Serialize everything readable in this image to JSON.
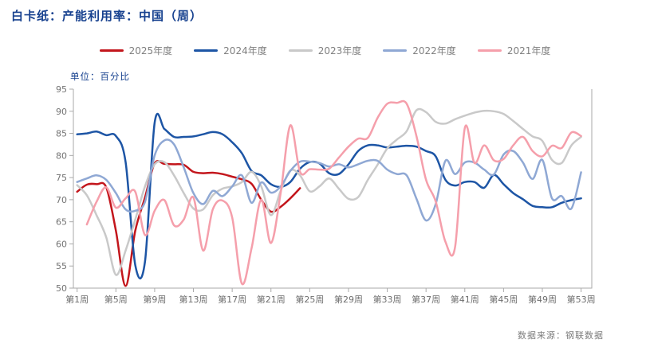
{
  "chart_data": {
    "type": "line",
    "title": "白卡纸：产能利用率：中国（周）",
    "unit_label": "单位：百分比",
    "source_label": "数据来源：钢联数据",
    "ylim": [
      50,
      95
    ],
    "ytick_step": 5,
    "x_weeks": 53,
    "xtick_weeks": [
      1,
      5,
      9,
      13,
      17,
      21,
      25,
      29,
      33,
      37,
      41,
      45,
      49,
      53
    ],
    "xtick_labels": [
      "第1周",
      "第5周",
      "第9周",
      "第13周",
      "第17周",
      "第21周",
      "第25周",
      "第29周",
      "第33周",
      "第37周",
      "第41周",
      "第45周",
      "第49周",
      "第53周"
    ],
    "grid": false,
    "legend_position": "top",
    "colors": {
      "title_text": "#17418f",
      "unit_text": "#17418f",
      "axis_line": "#aaaaaa",
      "tick_text": "#737373",
      "legend_text": "#7f7f7f",
      "source_text": "#7c7c7c"
    },
    "series": [
      {
        "name": "2025年度",
        "color": "#c3161c",
        "start_week": 1,
        "values": [
          71.8,
          73.4,
          73.5,
          72.8,
          63.0,
          50.5,
          63.0,
          70.5,
          78.2,
          78.1,
          78.0,
          77.9,
          76.3,
          76.0,
          76.1,
          75.8,
          75.2,
          74.6,
          73.6,
          70.0,
          67.3,
          68.4,
          70.3,
          72.6
        ]
      },
      {
        "name": "2024年度",
        "color": "#1d55a5",
        "start_week": 1,
        "values": [
          84.8,
          85.0,
          85.4,
          84.6,
          84.4,
          78.5,
          55.2,
          56.0,
          87.4,
          86.0,
          84.2,
          84.2,
          84.3,
          84.8,
          85.3,
          84.8,
          83.0,
          80.5,
          76.5,
          75.5,
          73.5,
          72.9,
          74.0,
          77.0,
          78.5,
          78.2,
          76.0,
          75.8,
          78.0,
          81.0,
          82.3,
          82.3,
          81.8,
          82.0,
          82.2,
          82.0,
          81.0,
          79.8,
          74.5,
          73.2,
          74.0,
          74.0,
          72.7,
          75.6,
          73.5,
          71.5,
          70.1,
          68.6,
          68.3,
          68.3,
          69.3,
          69.9,
          70.3
        ]
      },
      {
        "name": "2023年度",
        "color": "#c9c9c9",
        "start_week": 1,
        "values": [
          73.3,
          71.0,
          66.5,
          61.5,
          53.0,
          58.5,
          65.5,
          73.0,
          78.0,
          78.5,
          75.5,
          71.5,
          68.0,
          67.8,
          71.0,
          72.5,
          73.0,
          74.0,
          76.3,
          73.0,
          66.5,
          72.0,
          76.6,
          75.5,
          71.9,
          73.0,
          74.8,
          72.5,
          70.2,
          70.6,
          74.5,
          77.9,
          81.6,
          83.6,
          85.5,
          90.2,
          89.8,
          87.6,
          87.2,
          88.2,
          89.0,
          89.7,
          90.1,
          90.0,
          89.4,
          87.8,
          86.0,
          84.3,
          83.3,
          79.0,
          78.3,
          82.3,
          84.2
        ]
      },
      {
        "name": "2022年度",
        "color": "#8fa8d4",
        "start_week": 1,
        "values": [
          74.0,
          74.8,
          75.5,
          74.5,
          71.5,
          67.8,
          67.5,
          69.5,
          80.0,
          83.4,
          82.5,
          77.3,
          71.5,
          69.0,
          72.0,
          70.8,
          73.0,
          75.5,
          69.3,
          73.9,
          71.6,
          73.0,
          76.5,
          78.6,
          78.6,
          78.3,
          77.5,
          78.0,
          77.3,
          78.0,
          78.8,
          78.8,
          76.8,
          75.8,
          75.5,
          70.3,
          65.3,
          69.0,
          78.8,
          75.8,
          78.4,
          78.4,
          76.8,
          75.7,
          80.2,
          81.0,
          78.4,
          74.7,
          79.0,
          70.3,
          70.8,
          68.0,
          76.2
        ]
      },
      {
        "name": "2021年度",
        "color": "#f59fab",
        "start_week": 2,
        "values": [
          64.4,
          69.5,
          72.8,
          68.2,
          70.3,
          71.8,
          62.0,
          67.5,
          69.9,
          64.2,
          65.5,
          70.5,
          58.5,
          67.8,
          69.8,
          66.0,
          51.0,
          59.0,
          70.0,
          60.2,
          71.5,
          86.8,
          76.3,
          76.9,
          76.8,
          77.0,
          79.5,
          82.0,
          83.8,
          84.0,
          88.5,
          91.7,
          91.9,
          91.7,
          84.5,
          74.5,
          69.6,
          60.5,
          59.3,
          86.2,
          78.3,
          82.3,
          78.9,
          79.2,
          82.3,
          84.2,
          81.0,
          79.8,
          82.2,
          81.7,
          85.2,
          84.4
        ]
      }
    ]
  }
}
